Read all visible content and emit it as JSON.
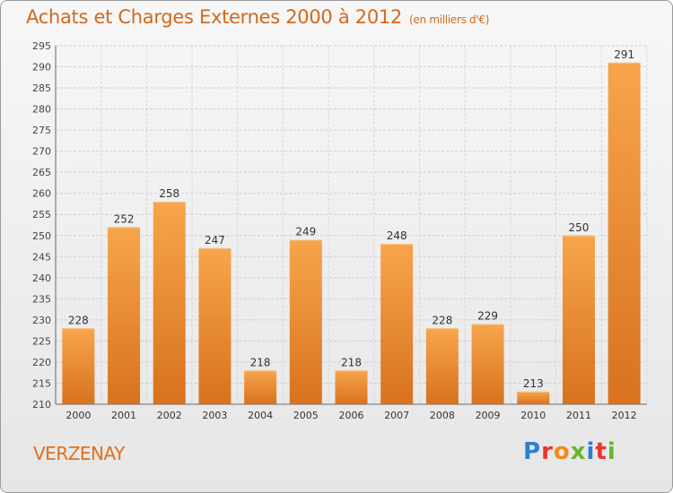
{
  "header": {
    "title": "Achats et Charges Externes 2000 à 2012",
    "subtitle": "(en milliers d'€)"
  },
  "footer": {
    "commune": "VERZENAY",
    "logo_text": "Proxiti"
  },
  "colors": {
    "bar_light": "#f7a54c",
    "bar_dark": "#d8721e",
    "title": "#d2691e",
    "grid": "#c9c9c9"
  },
  "chart_data": {
    "type": "bar",
    "title": "Achats et Charges Externes 2000 à 2012",
    "subtitle": "(en milliers d'€)",
    "categories": [
      "2000",
      "2001",
      "2002",
      "2003",
      "2004",
      "2005",
      "2006",
      "2007",
      "2008",
      "2009",
      "2010",
      "2011",
      "2012"
    ],
    "values": [
      228,
      252,
      258,
      247,
      218,
      249,
      218,
      248,
      228,
      229,
      213,
      250,
      291
    ],
    "ylim": [
      210,
      295
    ],
    "yticks": [
      210,
      215,
      220,
      225,
      230,
      235,
      240,
      245,
      250,
      255,
      260,
      265,
      270,
      275,
      280,
      285,
      290,
      295
    ],
    "grid": true,
    "data_labels": true
  }
}
